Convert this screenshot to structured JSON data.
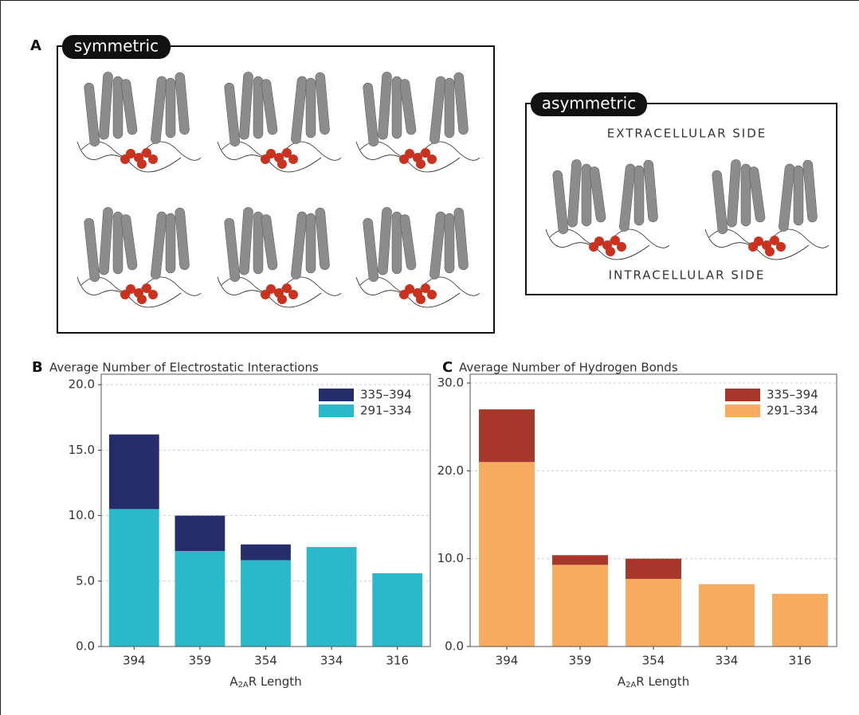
{
  "panel_a": {
    "label": "A",
    "symmetric": "symmetric",
    "asymmetric": "asymmetric",
    "top_side": "EXTRACELLULAR SIDE",
    "bottom_side": "INTRACELLULAR SIDE"
  },
  "chart_data": [
    {
      "type": "stacked_bar",
      "panel_label": "B",
      "title": "Average Number of Electrostatic Interactions",
      "x_label": {
        "main": "A",
        "sub": "2A",
        "rest": "R Length"
      },
      "categories": [
        "394",
        "359",
        "354",
        "334",
        "316"
      ],
      "series": [
        {
          "name": "291–334",
          "color": "#29b9cb",
          "values": [
            10.5,
            7.3,
            6.6,
            7.6,
            5.6
          ]
        },
        {
          "name": "335–394",
          "color": "#252d6b",
          "values": [
            5.7,
            2.7,
            1.2,
            null,
            null
          ]
        }
      ],
      "ylim": [
        0,
        20.8
      ],
      "yticks": [
        {
          "value": 0,
          "label": "0.0"
        },
        {
          "value": 5,
          "label": "5.0"
        },
        {
          "value": 10,
          "label": "10.0"
        },
        {
          "value": 15,
          "label": "15.0"
        },
        {
          "value": 20,
          "label": "20.0"
        }
      ],
      "grid": true,
      "legend": "upper-right"
    },
    {
      "type": "stacked_bar",
      "panel_label": "C",
      "title": "Average Number of Hydrogen Bonds",
      "x_label": {
        "main": "A",
        "sub": "2A",
        "rest": "R Length"
      },
      "categories": [
        "394",
        "359",
        "354",
        "334",
        "316"
      ],
      "series": [
        {
          "name": "291–334",
          "color": "#f7ab5e",
          "values": [
            21,
            9.3,
            7.7,
            7.1,
            6.0
          ]
        },
        {
          "name": "335–394",
          "color": "#a6372a",
          "values": [
            6,
            1.1,
            2.3,
            null,
            null
          ]
        }
      ],
      "ylim": [
        0,
        31
      ],
      "yticks": [
        {
          "value": 0,
          "label": "0.0"
        },
        {
          "value": 10,
          "label": "10.0"
        },
        {
          "value": 20,
          "label": "20.0"
        },
        {
          "value": 30,
          "label": "30.0"
        }
      ],
      "grid": true,
      "legend": "upper-right"
    }
  ]
}
